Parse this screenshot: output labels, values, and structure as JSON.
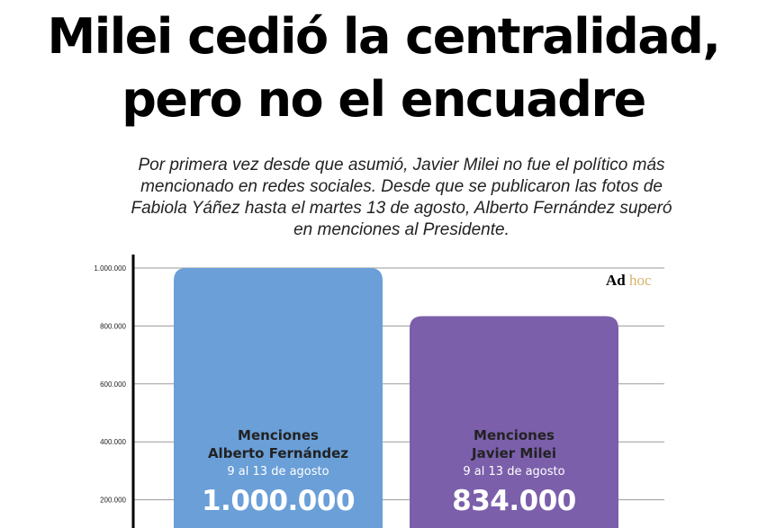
{
  "header": {
    "title_line1": "Milei cedió la centralidad,",
    "title_line2": "pero no el encuadre",
    "subtitle_lines": [
      "Por primera vez desde que asumió, Javier Milei no fue el político más",
      "mencionado en redes sociales. Desde que se publicaron las fotos de",
      "Fabiola Yáñez hasta el martes 13 de agosto, Alberto Fernández superó",
      "en menciones al Presidente."
    ]
  },
  "logo": {
    "part1": "Ad",
    "part2": "hoc"
  },
  "colors": {
    "bar1": "#6a9fd8",
    "bar2": "#7b5fab",
    "grid": "#999999",
    "axis": "#000000"
  },
  "chart_data": {
    "type": "bar",
    "ylim": [
      0,
      1000000
    ],
    "yticks": [
      200000,
      400000,
      600000,
      800000,
      1000000
    ],
    "ytick_labels": [
      "200.000",
      "400.000",
      "600.000",
      "800.000",
      "1.000.000"
    ],
    "grid": true,
    "bars": [
      {
        "value": 1000000,
        "label_line1": "Menciones",
        "label_line2": "Alberto Fernández",
        "period": "9 al 13 de agosto",
        "value_label": "1.000.000"
      },
      {
        "value": 834000,
        "label_line1": "Menciones",
        "label_line2": "Javier Milei",
        "period": "9 al 13 de agosto",
        "value_label": "834.000"
      }
    ]
  }
}
